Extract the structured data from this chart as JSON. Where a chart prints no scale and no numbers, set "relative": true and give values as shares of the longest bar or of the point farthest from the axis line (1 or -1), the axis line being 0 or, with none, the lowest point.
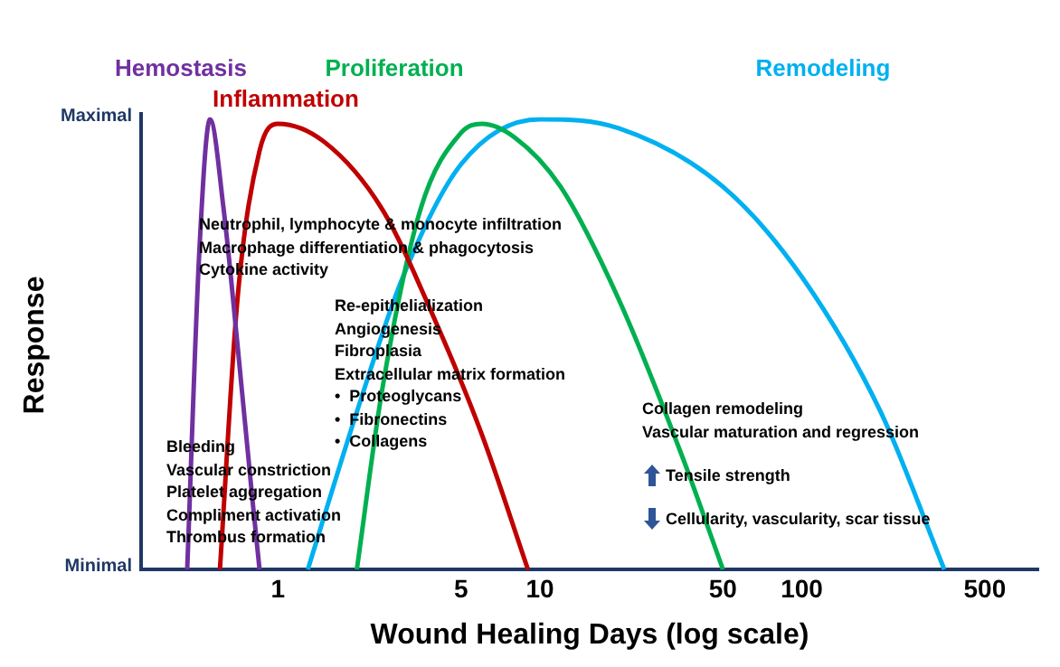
{
  "chart_data": {
    "type": "line",
    "xlabel": "Wound Healing Days (log scale)",
    "ylabel": "Response",
    "log": "x",
    "xlim": [
      0.3,
      800
    ],
    "xticks": [
      1,
      5,
      10,
      50,
      100,
      500
    ],
    "relative": true,
    "grid": false,
    "legend": false,
    "marker": "none",
    "line_style": "solid",
    "series": [
      {
        "name": "Hemostasis",
        "color": "#7030a0",
        "x": [
          0.45,
          0.5,
          0.55,
          0.62,
          0.7,
          0.8,
          0.85
        ],
        "values": [
          0,
          0.7,
          1,
          0.8,
          0.5,
          0.15,
          0
        ]
      },
      {
        "name": "Inflammation",
        "color": "#c00000",
        "x": [
          0.6,
          0.7,
          0.85,
          1,
          1.5,
          2.5,
          4,
          6,
          9
        ],
        "values": [
          0,
          0.6,
          0.93,
          0.99,
          0.95,
          0.8,
          0.55,
          0.3,
          0
        ]
      },
      {
        "name": "Proliferation",
        "color": "#00b050",
        "x": [
          2,
          2.5,
          3.5,
          5,
          6,
          8,
          12,
          20,
          35,
          50
        ],
        "values": [
          0,
          0.4,
          0.8,
          0.97,
          0.99,
          0.96,
          0.85,
          0.6,
          0.25,
          0
        ]
      },
      {
        "name": "Remodeling",
        "color": "#00b0f0",
        "x": [
          1.3,
          2,
          3,
          5,
          10,
          20,
          50,
          100,
          200,
          350
        ],
        "values": [
          0,
          0.35,
          0.65,
          0.9,
          1,
          0.98,
          0.85,
          0.65,
          0.35,
          0
        ]
      }
    ],
    "annotations": [
      "Maximal",
      "Minimal",
      "Neutrophil, lymphocyte & monocyte infiltration\nMacrophage differentiation & phagocytosis\nCytokine activity",
      "Re-epithelialization\nAngiogenesis\nFibroplasia\nExtracellular matrix formation\n•  Proteoglycans\n•  Fibronectins\n•  Collagens",
      "Bleeding\nVascular constriction\nPlatelet aggregation\nCompliment activation\nThrombus formation",
      "Collagen remodeling\nVascular maturation and regression",
      "Tensile strength",
      "Cellularity, vascularity, scar tissue"
    ]
  }
}
